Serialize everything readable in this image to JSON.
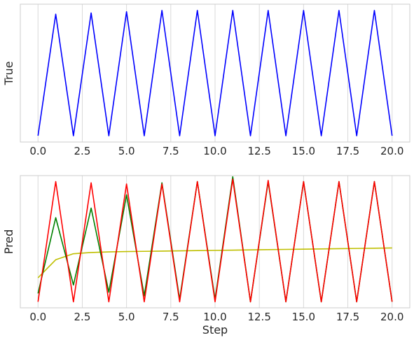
{
  "chart_data": [
    {
      "type": "line",
      "xlabel": "",
      "ylabel": "True",
      "xlim": [
        -1.0,
        21.0
      ],
      "ylim": [
        -0.05,
        1.05
      ],
      "xticks": [
        "0.0",
        "2.5",
        "5.0",
        "7.5",
        "10.0",
        "12.5",
        "15.0",
        "17.5",
        "20.0"
      ],
      "grid": "vertical",
      "y_ticklabels_visible": false,
      "x": [
        0,
        1,
        2,
        3,
        4,
        5,
        6,
        7,
        8,
        9,
        10,
        11,
        12,
        13,
        14,
        15,
        16,
        17,
        18,
        19,
        20
      ],
      "series": [
        {
          "color": "#0000ff",
          "values": [
            0,
            0.97,
            0,
            0.98,
            0,
            0.99,
            0,
            1,
            0,
            1,
            0,
            1,
            0,
            1,
            0,
            1,
            0,
            1,
            0,
            1,
            0
          ]
        }
      ]
    },
    {
      "type": "line",
      "xlabel": "Step",
      "ylabel": "Pred",
      "xlim": [
        -1.0,
        21.0
      ],
      "ylim": [
        -0.05,
        1.05
      ],
      "xticks": [
        "0.0",
        "2.5",
        "5.0",
        "7.5",
        "10.0",
        "12.5",
        "15.0",
        "17.5",
        "20.0"
      ],
      "grid": "vertical",
      "y_ticklabels_visible": false,
      "x": [
        0,
        1,
        2,
        3,
        4,
        5,
        6,
        7,
        8,
        9,
        10,
        11,
        12,
        13,
        14,
        15,
        16,
        17,
        18,
        19,
        20
      ],
      "series": [
        {
          "color": "#bfbf00",
          "values": [
            0.2,
            0.35,
            0.4,
            0.41,
            0.415,
            0.418,
            0.42,
            0.422,
            0.424,
            0.426,
            0.428,
            0.43,
            0.432,
            0.434,
            0.436,
            0.438,
            0.44,
            0.442,
            0.444,
            0.446,
            0.448
          ]
        },
        {
          "color": "#008000",
          "values": [
            0.07,
            0.7,
            0.14,
            0.78,
            0.08,
            0.89,
            0.05,
            0.99,
            0.02,
            1.0,
            0.02,
            1.04,
            0,
            1.0,
            0,
            1.0,
            0,
            1.0,
            0,
            1.0,
            0
          ]
        },
        {
          "color": "#ff0000",
          "values": [
            0,
            1.0,
            0,
            0.99,
            0,
            0.98,
            0,
            0.98,
            0,
            1.0,
            0,
            1.02,
            0,
            1.01,
            0,
            1.0,
            0,
            1.0,
            0,
            1.0,
            0
          ]
        }
      ]
    }
  ]
}
